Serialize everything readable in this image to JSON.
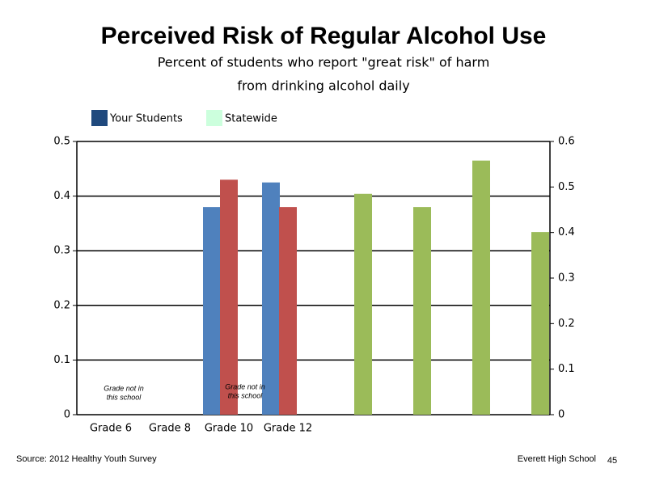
{
  "chart_data": {
    "type": "bar",
    "title": "Perceived Risk of Regular Alcohol Use",
    "subtitle": [
      "Percent of students who report \"great risk\" of harm",
      "from drinking alcohol daily"
    ],
    "legend": [
      {
        "name": "Your Students",
        "color": "#1f497d"
      },
      {
        "name": "Statewide",
        "color": "#ccffdd"
      }
    ],
    "categories": [
      "Grade 6",
      "Grade 8",
      "Grade 10",
      "Grade 12",
      null,
      null,
      null,
      null
    ],
    "series": [
      {
        "color": "#4f81bd",
        "values": [
          null,
          null,
          0.38,
          0.425,
          null,
          null,
          null,
          null
        ]
      },
      {
        "color": "#c0504d",
        "values": [
          null,
          null,
          0.43,
          0.38,
          null,
          null,
          null,
          null
        ]
      },
      {
        "color": "#9bbb59",
        "axis": "y2",
        "values": [
          null,
          null,
          null,
          null,
          0.485,
          0.456,
          0.558,
          0.401
        ]
      }
    ],
    "ylim": [
      0,
      0.5
    ],
    "yticks": [
      0,
      0.1,
      0.2,
      0.3,
      0.4,
      0.5
    ],
    "y2lim": [
      0,
      0.6
    ],
    "y2ticks": [
      0,
      0.1,
      0.2,
      0.3,
      0.4,
      0.5,
      0.6
    ],
    "grid": true,
    "annotations": [
      [
        "Grade not in",
        "this school"
      ],
      [
        "Grade not in",
        "this school"
      ]
    ],
    "source": "Source: 2012 Healthy Youth Survey",
    "school": "Everett High School",
    "page_number": "45"
  }
}
